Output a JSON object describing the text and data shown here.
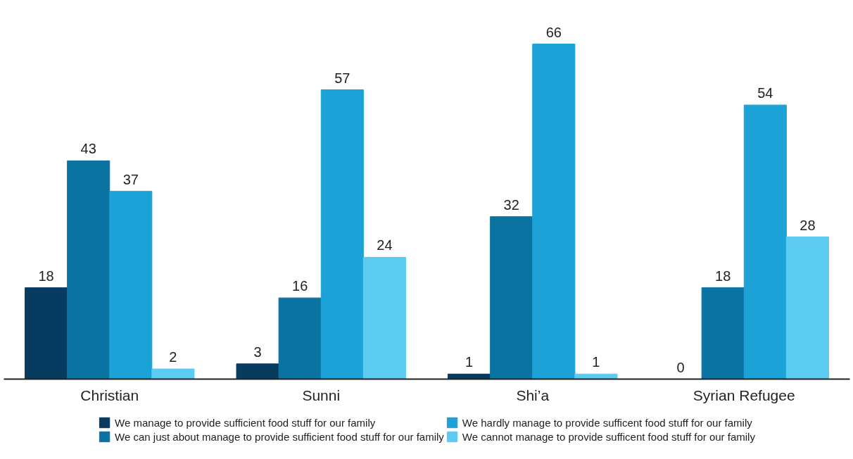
{
  "chart_data": {
    "type": "bar",
    "categories": [
      "Christian",
      "Sunni",
      "Shi’a",
      "Syrian Refugee"
    ],
    "series": [
      {
        "name": "We manage to provide sufficient food stuff for our family",
        "color": "#073b60",
        "values": [
          18,
          3,
          1,
          0
        ]
      },
      {
        "name": "We can just about manage to provide sufficient food stuff for our family",
        "color": "#0b73a1",
        "values": [
          43,
          16,
          32,
          18
        ]
      },
      {
        "name": "We hardly manage to provide sufficent food stuff for our family",
        "color": "#1ca2d6",
        "values": [
          37,
          57,
          66,
          54
        ]
      },
      {
        "name": "We cannot manage to provide sufficent food stuff for our family",
        "color": "#5ccbf2",
        "values": [
          2,
          24,
          1,
          28
        ]
      }
    ],
    "data_labels": true,
    "legend": "bottom",
    "grid": false
  }
}
